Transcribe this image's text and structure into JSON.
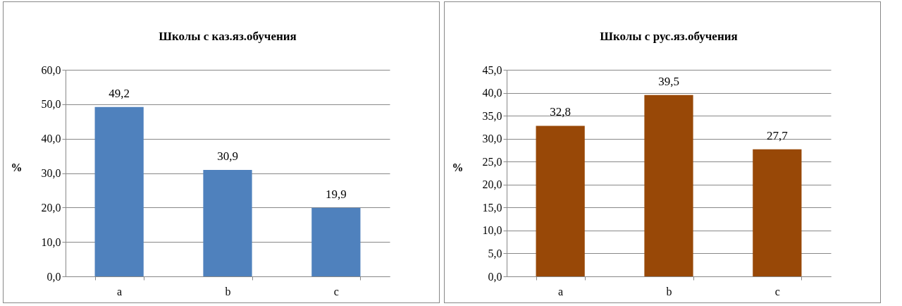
{
  "chart_data": [
    {
      "type": "bar",
      "title": "Школы с каз.яз.обучения",
      "ylabel": "%",
      "categories": [
        "a",
        "b",
        "c"
      ],
      "values": [
        49.2,
        30.9,
        19.9
      ],
      "color": "#4f81bd",
      "value_labels": [
        "49,2",
        "30,9",
        "19,9"
      ],
      "ylim": [
        0,
        60
      ],
      "yticks": [
        {
          "value": 0,
          "label": "0,0"
        },
        {
          "value": 10,
          "label": "10,0"
        },
        {
          "value": 20,
          "label": "20,0"
        },
        {
          "value": 30,
          "label": "30,0"
        },
        {
          "value": 40,
          "label": "40,0"
        },
        {
          "value": 50,
          "label": "50,0"
        },
        {
          "value": 60,
          "label": "60,0"
        }
      ],
      "grid": "y"
    },
    {
      "type": "bar",
      "title": "Школы с рус.яз.обучения",
      "ylabel": "%",
      "categories": [
        "a",
        "b",
        "c"
      ],
      "values": [
        32.8,
        39.5,
        27.7
      ],
      "color": "#984807",
      "value_labels": [
        "32,8",
        "39,5",
        "27,7"
      ],
      "ylim": [
        0,
        45
      ],
      "yticks": [
        {
          "value": 0,
          "label": "0,0"
        },
        {
          "value": 5,
          "label": "5,0"
        },
        {
          "value": 10,
          "label": "10,0"
        },
        {
          "value": 15,
          "label": "15,0"
        },
        {
          "value": 20,
          "label": "20,0"
        },
        {
          "value": 25,
          "label": "25,0"
        },
        {
          "value": 30,
          "label": "30,0"
        },
        {
          "value": 35,
          "label": "35,0"
        },
        {
          "value": 40,
          "label": "40,0"
        },
        {
          "value": 45,
          "label": "45,0"
        }
      ],
      "grid": "y"
    }
  ]
}
